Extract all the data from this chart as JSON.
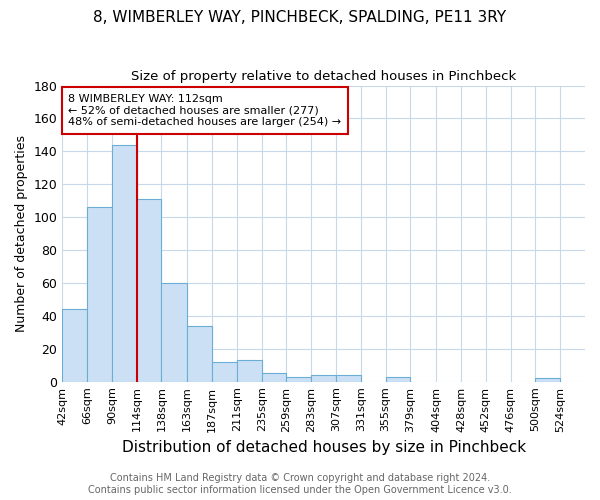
{
  "title": "8, WIMBERLEY WAY, PINCHBECK, SPALDING, PE11 3RY",
  "subtitle": "Size of property relative to detached houses in Pinchbeck",
  "xlabel": "Distribution of detached houses by size in Pinchbeck",
  "ylabel": "Number of detached properties",
  "bar_values": [
    44,
    106,
    144,
    111,
    60,
    34,
    12,
    13,
    5,
    3,
    4,
    4,
    0,
    3,
    0,
    0,
    0,
    0,
    0,
    2,
    0
  ],
  "bin_edges": [
    42,
    66,
    90,
    114,
    138,
    163,
    187,
    211,
    235,
    259,
    283,
    307,
    331,
    355,
    379,
    404,
    428,
    452,
    476,
    500,
    524,
    548
  ],
  "x_tick_labels": [
    "42sqm",
    "66sqm",
    "90sqm",
    "114sqm",
    "138sqm",
    "163sqm",
    "187sqm",
    "211sqm",
    "235sqm",
    "259sqm",
    "283sqm",
    "307sqm",
    "331sqm",
    "355sqm",
    "379sqm",
    "404sqm",
    "428sqm",
    "452sqm",
    "476sqm",
    "500sqm",
    "524sqm"
  ],
  "bar_color": "#cce0f5",
  "bar_edge_color": "#6aaed6",
  "vline_x": 114,
  "vline_color": "#cc0000",
  "ylim": [
    0,
    180
  ],
  "yticks": [
    0,
    20,
    40,
    60,
    80,
    100,
    120,
    140,
    160,
    180
  ],
  "annotation_text": "8 WIMBERLEY WAY: 112sqm\n← 52% of detached houses are smaller (277)\n48% of semi-detached houses are larger (254) →",
  "annotation_box_color": "#ffffff",
  "annotation_box_edge_color": "#cc0000",
  "footer_line1": "Contains HM Land Registry data © Crown copyright and database right 2024.",
  "footer_line2": "Contains public sector information licensed under the Open Government Licence v3.0.",
  "background_color": "#ffffff",
  "grid_color": "#c8d8e8",
  "title_fontsize": 11,
  "subtitle_fontsize": 9.5,
  "xlabel_fontsize": 11,
  "ylabel_fontsize": 9,
  "tick_fontsize": 8,
  "annotation_fontsize": 8,
  "footer_fontsize": 7
}
